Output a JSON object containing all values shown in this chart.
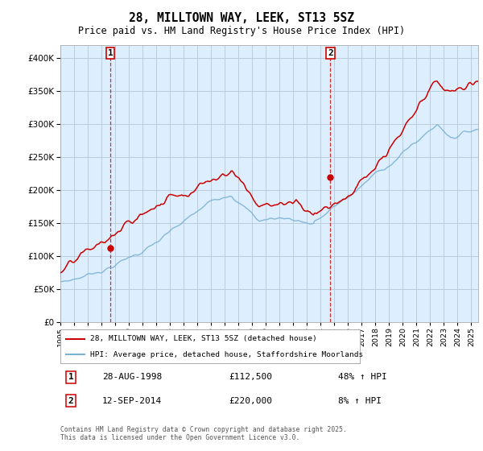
{
  "title_line1": "28, MILLTOWN WAY, LEEK, ST13 5SZ",
  "title_line2": "Price paid vs. HM Land Registry's House Price Index (HPI)",
  "legend_label_red": "28, MILLTOWN WAY, LEEK, ST13 5SZ (detached house)",
  "legend_label_blue": "HPI: Average price, detached house, Staffordshire Moorlands",
  "annotation1_date": "28-AUG-1998",
  "annotation1_price": "£112,500",
  "annotation1_hpi": "48% ↑ HPI",
  "annotation2_date": "12-SEP-2014",
  "annotation2_price": "£220,000",
  "annotation2_hpi": "8% ↑ HPI",
  "footer": "Contains HM Land Registry data © Crown copyright and database right 2025.\nThis data is licensed under the Open Government Licence v3.0.",
  "sale1_year": 1998.65,
  "sale1_price": 112500,
  "sale2_year": 2014.71,
  "sale2_price": 220000,
  "hpi_color": "#7ab3d4",
  "price_color": "#cc0000",
  "chart_bg_color": "#ddeeff",
  "background_color": "#ffffff",
  "grid_color": "#bbccdd",
  "ylim_min": 0,
  "ylim_max": 420000,
  "xlim_min": 1995,
  "xlim_max": 2025.5
}
